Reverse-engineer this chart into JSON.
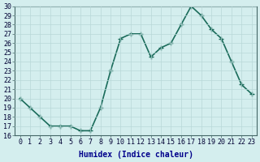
{
  "xlabel": "Humidex (Indice chaleur)",
  "x": [
    0,
    1,
    2,
    3,
    4,
    5,
    6,
    7,
    8,
    9,
    10,
    11,
    12,
    13,
    14,
    15,
    16,
    17,
    18,
    19,
    20,
    21,
    22,
    23
  ],
  "y": [
    20,
    19,
    18,
    17,
    17,
    17,
    16.5,
    16.5,
    19,
    23,
    26.5,
    27,
    27,
    24.5,
    25.5,
    26,
    28,
    30,
    29,
    27.5,
    26.5,
    24,
    21.5,
    20.5
  ],
  "line_color": "#1a6b5a",
  "marker": "+",
  "marker_size": 4,
  "marker_linewidth": 1.0,
  "line_width": 1.2,
  "bg_color": "#d4eeee",
  "grid_color": "#b8d8d8",
  "ylim": [
    16,
    30
  ],
  "yticks": [
    16,
    17,
    18,
    19,
    20,
    21,
    22,
    23,
    24,
    25,
    26,
    27,
    28,
    29,
    30
  ],
  "xlabel_fontsize": 7,
  "tick_fontsize": 6,
  "xlabel_color": "#00008b",
  "tick_color": "#000033"
}
